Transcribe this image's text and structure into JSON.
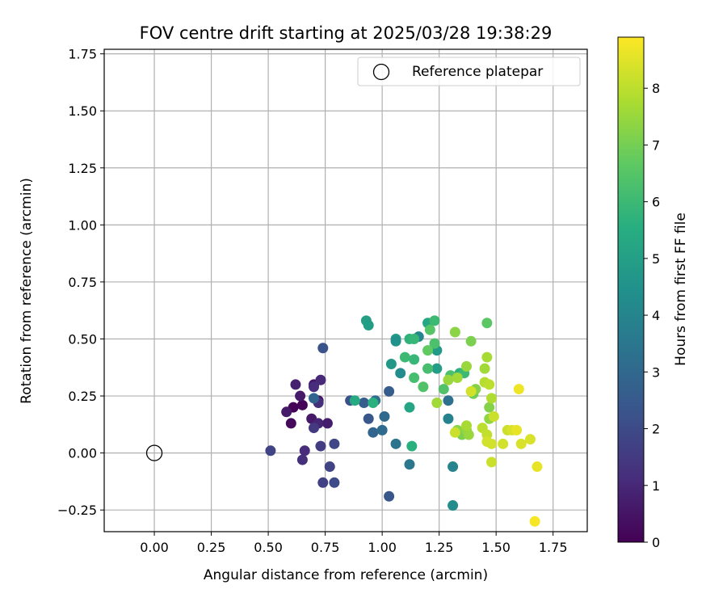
{
  "chart_data": {
    "type": "scatter",
    "title": "FOV centre drift starting at 2025/03/28 19:38:29",
    "xlabel": "Angular distance from reference (arcmin)",
    "ylabel": "Rotation from reference (arcmin)",
    "xlim": [
      -0.22,
      1.9
    ],
    "ylim": [
      -0.345,
      1.77
    ],
    "xticks": [
      0.0,
      0.25,
      0.5,
      0.75,
      1.0,
      1.25,
      1.5,
      1.75
    ],
    "xtick_labels": [
      "0.00",
      "0.25",
      "0.50",
      "0.75",
      "1.00",
      "1.25",
      "1.50",
      "1.75"
    ],
    "yticks": [
      -0.25,
      0.0,
      0.25,
      0.5,
      0.75,
      1.0,
      1.25,
      1.5,
      1.75
    ],
    "ytick_labels": [
      "−0.25",
      "0.00",
      "0.25",
      "0.50",
      "0.75",
      "1.00",
      "1.25",
      "1.50",
      "1.75"
    ],
    "grid": true,
    "legend": {
      "placement": "top-right",
      "entries": [
        "Reference platepar"
      ]
    },
    "reference_point": {
      "x": 0.0,
      "y": 0.0,
      "label": "Reference platepar"
    },
    "colorbar": {
      "label": "Hours from first FF file",
      "colormap": "viridis",
      "range": [
        0,
        8.9
      ],
      "ticks": [
        0,
        1,
        2,
        3,
        4,
        5,
        6,
        7,
        8
      ],
      "tick_labels": [
        "0",
        "1",
        "2",
        "3",
        "4",
        "5",
        "6",
        "7",
        "8"
      ]
    },
    "points": [
      {
        "x": 0.61,
        "y": 0.2,
        "t": 0.05
      },
      {
        "x": 0.65,
        "y": 0.21,
        "t": 0.1
      },
      {
        "x": 0.6,
        "y": 0.13,
        "t": 0.2
      },
      {
        "x": 0.58,
        "y": 0.18,
        "t": 0.6
      },
      {
        "x": 0.62,
        "y": 0.3,
        "t": 0.8
      },
      {
        "x": 0.64,
        "y": 0.25,
        "t": 0.6
      },
      {
        "x": 0.7,
        "y": 0.3,
        "t": 0.5
      },
      {
        "x": 0.72,
        "y": 0.23,
        "t": 0.4
      },
      {
        "x": 0.69,
        "y": 0.15,
        "t": 0.6
      },
      {
        "x": 0.72,
        "y": 0.13,
        "t": 0.9
      },
      {
        "x": 0.76,
        "y": 0.13,
        "t": 0.7
      },
      {
        "x": 0.73,
        "y": 0.32,
        "t": 1.0
      },
      {
        "x": 0.7,
        "y": 0.29,
        "t": 1.1
      },
      {
        "x": 0.72,
        "y": 0.22,
        "t": 1.2
      },
      {
        "x": 0.66,
        "y": 0.01,
        "t": 1.1
      },
      {
        "x": 0.65,
        "y": -0.03,
        "t": 1.2
      },
      {
        "x": 0.7,
        "y": 0.11,
        "t": 1.5
      },
      {
        "x": 0.51,
        "y": 0.01,
        "t": 1.8
      },
      {
        "x": 0.73,
        "y": 0.03,
        "t": 1.6
      },
      {
        "x": 0.74,
        "y": -0.13,
        "t": 1.7
      },
      {
        "x": 0.77,
        "y": -0.06,
        "t": 1.8
      },
      {
        "x": 0.79,
        "y": 0.04,
        "t": 1.9
      },
      {
        "x": 0.79,
        "y": -0.13,
        "t": 2.0
      },
      {
        "x": 0.74,
        "y": 0.46,
        "t": 2.3
      },
      {
        "x": 0.7,
        "y": 0.24,
        "t": 2.9
      },
      {
        "x": 0.86,
        "y": 0.23,
        "t": 2.2
      },
      {
        "x": 0.92,
        "y": 0.22,
        "t": 2.6
      },
      {
        "x": 0.94,
        "y": 0.15,
        "t": 2.4
      },
      {
        "x": 0.96,
        "y": 0.09,
        "t": 2.9
      },
      {
        "x": 0.97,
        "y": 0.23,
        "t": 3.2
      },
      {
        "x": 1.0,
        "y": 0.1,
        "t": 3.1
      },
      {
        "x": 1.01,
        "y": 0.16,
        "t": 3.0
      },
      {
        "x": 1.03,
        "y": 0.27,
        "t": 2.6
      },
      {
        "x": 1.03,
        "y": -0.19,
        "t": 2.4
      },
      {
        "x": 1.06,
        "y": 0.04,
        "t": 3.4
      },
      {
        "x": 1.12,
        "y": -0.05,
        "t": 3.5
      },
      {
        "x": 1.29,
        "y": 0.23,
        "t": 3.3
      },
      {
        "x": 1.29,
        "y": 0.15,
        "t": 3.9
      },
      {
        "x": 1.31,
        "y": -0.06,
        "t": 4.0
      },
      {
        "x": 1.31,
        "y": -0.23,
        "t": 4.3
      },
      {
        "x": 1.08,
        "y": 0.35,
        "t": 4.3
      },
      {
        "x": 1.04,
        "y": 0.39,
        "t": 4.7
      },
      {
        "x": 1.06,
        "y": 0.5,
        "t": 4.8
      },
      {
        "x": 1.06,
        "y": 0.49,
        "t": 4.5
      },
      {
        "x": 1.16,
        "y": 0.51,
        "t": 4.1
      },
      {
        "x": 1.12,
        "y": 0.2,
        "t": 5.2
      },
      {
        "x": 1.13,
        "y": 0.03,
        "t": 5.6
      },
      {
        "x": 1.24,
        "y": 0.37,
        "t": 4.9
      },
      {
        "x": 1.24,
        "y": 0.45,
        "t": 4.8
      },
      {
        "x": 1.2,
        "y": 0.57,
        "t": 5.3
      },
      {
        "x": 0.93,
        "y": 0.58,
        "t": 5.0
      },
      {
        "x": 0.94,
        "y": 0.56,
        "t": 4.9
      },
      {
        "x": 0.88,
        "y": 0.23,
        "t": 5.4
      },
      {
        "x": 0.96,
        "y": 0.22,
        "t": 5.6
      },
      {
        "x": 1.12,
        "y": 0.5,
        "t": 5.7
      },
      {
        "x": 1.14,
        "y": 0.5,
        "t": 5.9
      },
      {
        "x": 1.14,
        "y": 0.41,
        "t": 5.9
      },
      {
        "x": 1.1,
        "y": 0.42,
        "t": 6.0
      },
      {
        "x": 1.14,
        "y": 0.33,
        "t": 6.2
      },
      {
        "x": 1.18,
        "y": 0.29,
        "t": 6.4
      },
      {
        "x": 1.2,
        "y": 0.37,
        "t": 6.2
      },
      {
        "x": 1.21,
        "y": 0.54,
        "t": 6.5
      },
      {
        "x": 1.23,
        "y": 0.48,
        "t": 6.3
      },
      {
        "x": 1.23,
        "y": 0.58,
        "t": 6.0
      },
      {
        "x": 1.27,
        "y": 0.28,
        "t": 6.4
      },
      {
        "x": 1.2,
        "y": 0.45,
        "t": 6.7
      },
      {
        "x": 1.34,
        "y": 0.35,
        "t": 5.6
      },
      {
        "x": 1.36,
        "y": 0.35,
        "t": 6.0
      },
      {
        "x": 1.3,
        "y": 0.34,
        "t": 6.3
      },
      {
        "x": 1.46,
        "y": 0.57,
        "t": 6.6
      },
      {
        "x": 1.4,
        "y": 0.26,
        "t": 6.9
      },
      {
        "x": 1.39,
        "y": 0.49,
        "t": 7.1
      },
      {
        "x": 1.32,
        "y": 0.53,
        "t": 7.3
      },
      {
        "x": 1.33,
        "y": 0.1,
        "t": 7.3
      },
      {
        "x": 1.35,
        "y": 0.08,
        "t": 7.1
      },
      {
        "x": 1.37,
        "y": 0.1,
        "t": 7.4
      },
      {
        "x": 1.37,
        "y": 0.38,
        "t": 7.5
      },
      {
        "x": 1.29,
        "y": 0.32,
        "t": 7.5
      },
      {
        "x": 1.24,
        "y": 0.22,
        "t": 7.6
      },
      {
        "x": 1.33,
        "y": 0.33,
        "t": 7.6
      },
      {
        "x": 1.41,
        "y": 0.28,
        "t": 7.2
      },
      {
        "x": 1.38,
        "y": 0.08,
        "t": 7.5
      },
      {
        "x": 1.37,
        "y": 0.12,
        "t": 7.7
      },
      {
        "x": 1.45,
        "y": 0.37,
        "t": 7.6
      },
      {
        "x": 1.46,
        "y": 0.42,
        "t": 7.7
      },
      {
        "x": 1.47,
        "y": 0.2,
        "t": 7.2
      },
      {
        "x": 1.47,
        "y": 0.15,
        "t": 7.4
      },
      {
        "x": 1.48,
        "y": 0.24,
        "t": 7.8
      },
      {
        "x": 1.45,
        "y": 0.31,
        "t": 7.9
      },
      {
        "x": 1.47,
        "y": 0.3,
        "t": 8.0
      },
      {
        "x": 1.44,
        "y": 0.11,
        "t": 8.0
      },
      {
        "x": 1.46,
        "y": 0.08,
        "t": 8.1
      },
      {
        "x": 1.49,
        "y": 0.16,
        "t": 8.2
      },
      {
        "x": 1.46,
        "y": 0.05,
        "t": 8.3
      },
      {
        "x": 1.48,
        "y": 0.04,
        "t": 8.3
      },
      {
        "x": 1.48,
        "y": -0.04,
        "t": 8.2
      },
      {
        "x": 1.39,
        "y": 0.27,
        "t": 8.3
      },
      {
        "x": 1.32,
        "y": 0.09,
        "t": 8.2
      },
      {
        "x": 1.53,
        "y": 0.04,
        "t": 8.3
      },
      {
        "x": 1.55,
        "y": 0.1,
        "t": 8.2
      },
      {
        "x": 1.57,
        "y": 0.1,
        "t": 8.4
      },
      {
        "x": 1.59,
        "y": 0.1,
        "t": 8.6
      },
      {
        "x": 1.61,
        "y": 0.04,
        "t": 8.4
      },
      {
        "x": 1.6,
        "y": 0.28,
        "t": 8.7
      },
      {
        "x": 1.65,
        "y": 0.06,
        "t": 8.4
      },
      {
        "x": 1.68,
        "y": -0.06,
        "t": 8.6
      },
      {
        "x": 1.67,
        "y": -0.3,
        "t": 8.8
      }
    ]
  }
}
